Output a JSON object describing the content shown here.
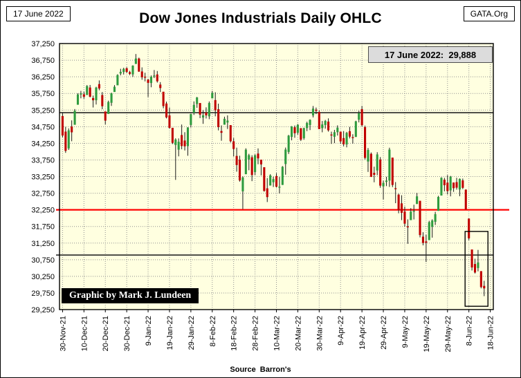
{
  "window": {
    "date_box": "17 June 2022",
    "org_box": "GATA.Org"
  },
  "title": "Dow Jones Industrials Daily OHLC",
  "annotations": {
    "price_label": "17 June 2022:  29,888",
    "credit": "Graphic by Mark J. Lundeen",
    "source_label": "Source  Barron's"
  },
  "chart_data": {
    "type": "candlestick-ohlc",
    "title": "Dow Jones Industrials Daily OHLC",
    "ylim": [
      29250,
      37250
    ],
    "ytick_step": 500,
    "grid": "dotted",
    "plot_bg": "#FFFFE0",
    "up_color": "#2E9B3E",
    "down_color": "#C00000",
    "wick_color": "#1a1a1a",
    "xtick_candle_stride": 7,
    "xticklabels": [
      "30-Nov-21",
      "10-Dec-21",
      "20-Dec-21",
      "30-Dec-21",
      "9-Jan-22",
      "19-Jan-22",
      "29-Jan-22",
      "8-Feb-22",
      "18-Feb-22",
      "28-Feb-22",
      "10-Mar-22",
      "20-Mar-22",
      "30-Mar-22",
      "9-Apr-22",
      "19-Apr-22",
      "29-Apr-22",
      "9-May-22",
      "19-May-22",
      "29-May-22",
      "8-Jun-22",
      "18-Jun-22"
    ],
    "reference_lines": [
      {
        "value": 35170,
        "color": "#262626",
        "width": 1.6,
        "extend_left": 0,
        "extend_right": 0
      },
      {
        "value": 32250,
        "color": "#FF0000",
        "width": 2.2,
        "extend_left": 5,
        "extend_right": 23
      },
      {
        "value": 30890,
        "color": "#262626",
        "width": 1.6,
        "extend_left": 5,
        "extend_right": 0
      }
    ],
    "highlight_box": {
      "start_index": 133,
      "end_index": 138,
      "y_top": 31600,
      "y_bottom": 29350
    },
    "last_close": 29888,
    "ohlc": [
      [
        35070,
        35170,
        34424,
        34484
      ],
      [
        34602,
        34744,
        33963,
        34022
      ],
      [
        34097,
        34700,
        34050,
        34640
      ],
      [
        34755,
        34940,
        34312,
        34580
      ],
      [
        34807,
        35280,
        34807,
        35227
      ],
      [
        35410,
        35755,
        35410,
        35719
      ],
      [
        35717,
        35826,
        35603,
        35755
      ],
      [
        35723,
        35800,
        35587,
        35650
      ],
      [
        35702,
        36000,
        35702,
        35971
      ],
      [
        35928,
        36004,
        35631,
        35651
      ],
      [
        35611,
        35686,
        35327,
        35544
      ],
      [
        35544,
        35950,
        35416,
        35927
      ],
      [
        36030,
        36141,
        35845,
        35898
      ],
      [
        35701,
        35791,
        35276,
        35365
      ],
      [
        35208,
        35208,
        34820,
        34932
      ],
      [
        35135,
        35532,
        35135,
        35493
      ],
      [
        35468,
        35772,
        35374,
        35754
      ],
      [
        35794,
        36000,
        35794,
        35950
      ],
      [
        35995,
        36327,
        35995,
        36302
      ],
      [
        36347,
        36491,
        36293,
        36399
      ],
      [
        36392,
        36522,
        36318,
        36488
      ],
      [
        36507,
        36536,
        36362,
        36398
      ],
      [
        36390,
        36430,
        36300,
        36338
      ],
      [
        36322,
        36596,
        36247,
        36586
      ],
      [
        36636,
        36935,
        36636,
        36800
      ],
      [
        36800,
        36826,
        36397,
        36407
      ],
      [
        36410,
        36533,
        36161,
        36236
      ],
      [
        36254,
        36372,
        36112,
        36232
      ],
      [
        36164,
        36190,
        35641,
        36068
      ],
      [
        36063,
        36290,
        35935,
        36252
      ],
      [
        36280,
        36454,
        36212,
        36290
      ],
      [
        36320,
        36424,
        36075,
        36114
      ],
      [
        36016,
        36090,
        35791,
        35912
      ],
      [
        35800,
        35800,
        35302,
        35369
      ],
      [
        35446,
        35504,
        34999,
        35029
      ],
      [
        35090,
        35328,
        34694,
        34715
      ],
      [
        34716,
        34716,
        34228,
        34265
      ],
      [
        34200,
        34400,
        33150,
        34364
      ],
      [
        34058,
        34397,
        33858,
        34297
      ],
      [
        34499,
        34815,
        34070,
        34168
      ],
      [
        34334,
        34584,
        34035,
        34160
      ],
      [
        34166,
        34737,
        33876,
        34725
      ],
      [
        34801,
        35142,
        34724,
        35132
      ],
      [
        35167,
        35510,
        35103,
        35405
      ],
      [
        35432,
        35644,
        35316,
        35629
      ],
      [
        35461,
        35461,
        35006,
        35111
      ],
      [
        35025,
        35246,
        34835,
        35090
      ],
      [
        35180,
        35331,
        34996,
        35091
      ],
      [
        35061,
        35509,
        34976,
        35462
      ],
      [
        35602,
        35825,
        35602,
        35768
      ],
      [
        35549,
        35785,
        35061,
        35242
      ],
      [
        35274,
        35442,
        34639,
        34738
      ],
      [
        34619,
        34789,
        34327,
        34566
      ],
      [
        34810,
        35050,
        34810,
        34988
      ],
      [
        34874,
        35090,
        34680,
        34934
      ],
      [
        34796,
        34796,
        34273,
        34312
      ],
      [
        34310,
        34410,
        33852,
        34079
      ],
      [
        33870,
        34120,
        33397,
        33597
      ],
      [
        33757,
        33876,
        33098,
        33132
      ],
      [
        32805,
        33255,
        32272,
        33224
      ],
      [
        33321,
        34100,
        33321,
        34059
      ],
      [
        33760,
        33934,
        33440,
        33893
      ],
      [
        33830,
        33891,
        33112,
        33295
      ],
      [
        33386,
        33920,
        33290,
        33891
      ],
      [
        33942,
        34097,
        33620,
        33795
      ],
      [
        33757,
        33757,
        33285,
        33615
      ],
      [
        33531,
        33531,
        32795,
        32817
      ],
      [
        32896,
        33205,
        32484,
        32632
      ],
      [
        32980,
        33320,
        32980,
        33286
      ],
      [
        33079,
        33244,
        32936,
        33174
      ],
      [
        33265,
        33355,
        32920,
        32944
      ],
      [
        32944,
        33237,
        32744,
        32945
      ],
      [
        32998,
        33566,
        32998,
        33544
      ],
      [
        33626,
        34122,
        33305,
        34063
      ],
      [
        33990,
        34503,
        33930,
        34481
      ],
      [
        34442,
        34768,
        34339,
        34755
      ],
      [
        34733,
        34785,
        34416,
        34553
      ],
      [
        34569,
        34830,
        34510,
        34807
      ],
      [
        34706,
        34706,
        34318,
        34358
      ],
      [
        34404,
        34720,
        34356,
        34708
      ],
      [
        34708,
        34900,
        34616,
        34861
      ],
      [
        34800,
        34970,
        34647,
        34956
      ],
      [
        35090,
        35372,
        35029,
        35294
      ],
      [
        35260,
        35325,
        35127,
        35228
      ],
      [
        35192,
        35238,
        34678,
        34678
      ],
      [
        34705,
        34920,
        34581,
        34818
      ],
      [
        34800,
        34953,
        34690,
        34921
      ],
      [
        34903,
        35000,
        34601,
        34641
      ],
      [
        34514,
        34600,
        34232,
        34497
      ],
      [
        34447,
        34654,
        34257,
        34584
      ],
      [
        34584,
        34790,
        34483,
        34721
      ],
      [
        34600,
        34600,
        34236,
        34308
      ],
      [
        34407,
        34618,
        34156,
        34220
      ],
      [
        34216,
        34593,
        34128,
        34565
      ],
      [
        34614,
        34744,
        34397,
        34451
      ],
      [
        34436,
        34523,
        34240,
        34411
      ],
      [
        34441,
        34928,
        34441,
        34911
      ],
      [
        34960,
        35227,
        34878,
        35160
      ],
      [
        35277,
        35372,
        34762,
        34793
      ],
      [
        34739,
        34782,
        33765,
        33811
      ],
      [
        33702,
        34108,
        33389,
        34049
      ],
      [
        33935,
        33975,
        33236,
        33240
      ],
      [
        33361,
        33547,
        33078,
        33302
      ],
      [
        33432,
        33983,
        33290,
        33916
      ],
      [
        33763,
        33836,
        32913,
        32977
      ],
      [
        32955,
        33129,
        32559,
        33061
      ],
      [
        33090,
        33243,
        32963,
        33129
      ],
      [
        33129,
        34118,
        32938,
        34061
      ],
      [
        33820,
        33820,
        32933,
        32998
      ],
      [
        32900,
        33084,
        32450,
        32899
      ],
      [
        32706,
        32735,
        32146,
        32246
      ],
      [
        32444,
        32688,
        31940,
        32160
      ],
      [
        32200,
        32346,
        31741,
        31834
      ],
      [
        31752,
        31963,
        31228,
        31730
      ],
      [
        31940,
        32302,
        31940,
        32197
      ],
      [
        32208,
        32403,
        31961,
        32223
      ],
      [
        32425,
        32762,
        32425,
        32655
      ],
      [
        32521,
        32521,
        31421,
        31490
      ],
      [
        31443,
        31577,
        31181,
        31253
      ],
      [
        31300,
        31500,
        30680,
        31262
      ],
      [
        31340,
        31920,
        31340,
        31880
      ],
      [
        31738,
        31965,
        31413,
        31929
      ],
      [
        31890,
        32190,
        31794,
        32120
      ],
      [
        32219,
        32670,
        32219,
        32637
      ],
      [
        32680,
        33230,
        32680,
        33213
      ],
      [
        33155,
        33211,
        32806,
        32990
      ],
      [
        33068,
        33293,
        32714,
        32813
      ],
      [
        32834,
        33269,
        32655,
        33248
      ],
      [
        33070,
        33070,
        32790,
        32900
      ],
      [
        33083,
        33213,
        32857,
        32916
      ],
      [
        32860,
        33195,
        32660,
        33180
      ],
      [
        33135,
        33190,
        32872,
        32911
      ],
      [
        32856,
        32867,
        32260,
        32273
      ],
      [
        31987,
        31987,
        31336,
        31393
      ],
      [
        31057,
        31057,
        30425,
        30517
      ],
      [
        30620,
        30780,
        30335,
        30365
      ],
      [
        30500,
        31045,
        30400,
        30668
      ],
      [
        30406,
        30406,
        29888,
        29927
      ],
      [
        29963,
        30116,
        29654,
        29888
      ]
    ]
  }
}
